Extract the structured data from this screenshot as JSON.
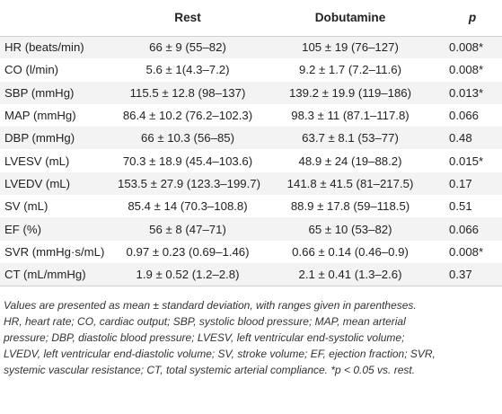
{
  "table": {
    "headers": {
      "label": "",
      "rest": "Rest",
      "dobutamine": "Dobutamine",
      "p": "p"
    },
    "rows": [
      {
        "label": "HR (beats/min)",
        "rest": "66 ± 9 (55–82)",
        "dobutamine": "105 ± 19 (76–127)",
        "p": "0.008*"
      },
      {
        "label": "CO (l/min)",
        "rest": "5.6 ± 1(4.3–7.2)",
        "dobutamine": "9.2 ± 1.7 (7.2–11.6)",
        "p": "0.008*"
      },
      {
        "label": "SBP (mmHg)",
        "rest": "115.5 ± 12.8 (98–137)",
        "dobutamine": "139.2 ± 19.9 (119–186)",
        "p": "0.013*"
      },
      {
        "label": "MAP (mmHg)",
        "rest": "86.4 ± 10.2 (76.2–102.3)",
        "dobutamine": "98.3 ± 11 (87.1–117.8)",
        "p": "0.066"
      },
      {
        "label": "DBP (mmHg)",
        "rest": "66 ± 10.3 (56–85)",
        "dobutamine": "63.7 ± 8.1 (53–77)",
        "p": "0.48"
      },
      {
        "label": "LVESV (mL)",
        "rest": "70.3 ± 18.9 (45.4–103.6)",
        "dobutamine": "48.9 ± 24 (19–88.2)",
        "p": "0.015*"
      },
      {
        "label": "LVEDV (mL)",
        "rest": "153.5 ± 27.9 (123.3–199.7)",
        "dobutamine": "141.8 ± 41.5 (81–217.5)",
        "p": "0.17"
      },
      {
        "label": "SV (mL)",
        "rest": "85.4 ± 14 (70.3–108.8)",
        "dobutamine": "88.9 ± 17.8 (59–118.5)",
        "p": "0.51"
      },
      {
        "label": "EF (%)",
        "rest": "56 ± 8 (47–71)",
        "dobutamine": "65 ± 10 (53–82)",
        "p": "0.066"
      },
      {
        "label": "SVR (mmHg·s/mL)",
        "rest": "0.97 ± 0.23 (0.69–1.46)",
        "dobutamine": "0.66 ± 0.14 (0.46–0.9)",
        "p": "0.008*"
      },
      {
        "label": "CT (mL/mmHg)",
        "rest": "1.9 ± 0.52 (1.2–2.8)",
        "dobutamine": "2.1 ± 0.41 (1.3–2.6)",
        "p": "0.37"
      }
    ]
  },
  "notes": [
    "Values are presented as mean ± standard deviation, with ranges given in parentheses.",
    "HR, heart rate; CO, cardiac output; SBP, systolic blood pressure; MAP, mean arterial",
    "pressure; DBP, diastolic blood pressure; LVESV, left ventricular end-systolic volume;",
    "LVEDV, left ventricular end-diastolic volume; SV, stroke volume; EF, ejection fraction; SVR,",
    "systemic vascular resistance; CT, total systemic arterial compliance. *p < 0.05 vs. rest."
  ],
  "colors": {
    "row_shade": "#f3f3f3",
    "text": "#222222",
    "rule": "#d0d0d0"
  }
}
